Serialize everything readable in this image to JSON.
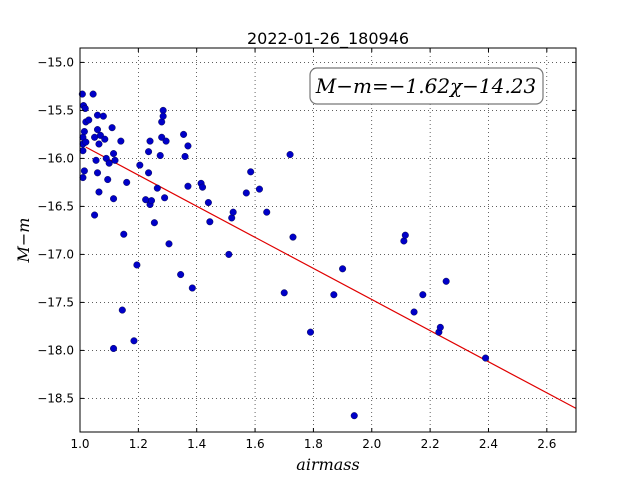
{
  "chart_data": {
    "type": "scatter",
    "title": "2022-01-26_180946",
    "xlabel": "airmass",
    "ylabel": "M−m",
    "annotation": "M−m=−1.62χ−14.23",
    "xlim": [
      1.0,
      2.7
    ],
    "ylim": [
      -18.85,
      -14.85
    ],
    "x_ticks": [
      1.0,
      1.2,
      1.4,
      1.6,
      1.8,
      2.0,
      2.2,
      2.4,
      2.6
    ],
    "x_tick_labels": [
      "1.0",
      "1.2",
      "1.4",
      "1.6",
      "1.8",
      "2.0",
      "2.2",
      "2.4",
      "2.6"
    ],
    "y_ticks": [
      -15.0,
      -15.5,
      -16.0,
      -16.5,
      -17.0,
      -17.5,
      -18.0,
      -18.5
    ],
    "y_tick_labels": [
      "−15.0",
      "−15.5",
      "−16.0",
      "−16.5",
      "−17.0",
      "−17.5",
      "−18.0",
      "−18.5"
    ],
    "grid": true,
    "points_color": "#0000c8",
    "fit_color": "#e00000",
    "fit": {
      "slope": -1.62,
      "intercept": -14.23,
      "x_range": [
        1.02,
        2.7
      ]
    },
    "points": [
      [
        1.008,
        -15.33
      ],
      [
        1.012,
        -15.45
      ],
      [
        1.018,
        -15.48
      ],
      [
        1.01,
        -15.78
      ],
      [
        1.01,
        -15.85
      ],
      [
        1.01,
        -15.92
      ],
      [
        1.015,
        -15.72
      ],
      [
        1.02,
        -15.83
      ],
      [
        1.02,
        -15.62
      ],
      [
        1.03,
        -15.6
      ],
      [
        1.045,
        -15.33
      ],
      [
        1.015,
        -16.13
      ],
      [
        1.01,
        -16.2
      ],
      [
        1.05,
        -15.78
      ],
      [
        1.06,
        -15.55
      ],
      [
        1.06,
        -15.7
      ],
      [
        1.065,
        -15.85
      ],
      [
        1.07,
        -15.76
      ],
      [
        1.055,
        -16.02
      ],
      [
        1.08,
        -15.56
      ],
      [
        1.085,
        -15.8
      ],
      [
        1.06,
        -16.15
      ],
      [
        1.065,
        -16.35
      ],
      [
        1.09,
        -16.0
      ],
      [
        1.095,
        -16.22
      ],
      [
        1.05,
        -16.59
      ],
      [
        1.1,
        -16.05
      ],
      [
        1.11,
        -15.68
      ],
      [
        1.115,
        -15.95
      ],
      [
        1.12,
        -16.02
      ],
      [
        1.115,
        -16.42
      ],
      [
        1.14,
        -15.82
      ],
      [
        1.16,
        -16.25
      ],
      [
        1.15,
        -16.79
      ],
      [
        1.195,
        -17.11
      ],
      [
        1.145,
        -17.58
      ],
      [
        1.185,
        -17.9
      ],
      [
        1.115,
        -17.98
      ],
      [
        1.205,
        -16.07
      ],
      [
        1.225,
        -16.43
      ],
      [
        1.235,
        -15.93
      ],
      [
        1.235,
        -16.15
      ],
      [
        1.24,
        -16.48
      ],
      [
        1.24,
        -15.82
      ],
      [
        1.255,
        -16.67
      ],
      [
        1.265,
        -16.31
      ],
      [
        1.245,
        -16.44
      ],
      [
        1.275,
        -15.97
      ],
      [
        1.28,
        -15.78
      ],
      [
        1.28,
        -15.62
      ],
      [
        1.285,
        -15.5
      ],
      [
        1.285,
        -15.56
      ],
      [
        1.295,
        -15.82
      ],
      [
        1.29,
        -16.41
      ],
      [
        1.305,
        -16.89
      ],
      [
        1.345,
        -17.21
      ],
      [
        1.355,
        -15.75
      ],
      [
        1.36,
        -15.98
      ],
      [
        1.37,
        -15.87
      ],
      [
        1.37,
        -16.29
      ],
      [
        1.385,
        -17.35
      ],
      [
        1.415,
        -16.26
      ],
      [
        1.42,
        -16.3
      ],
      [
        1.44,
        -16.46
      ],
      [
        1.445,
        -16.66
      ],
      [
        1.51,
        -17.0
      ],
      [
        1.52,
        -16.62
      ],
      [
        1.525,
        -16.56
      ],
      [
        1.57,
        -16.36
      ],
      [
        1.585,
        -16.14
      ],
      [
        1.615,
        -16.32
      ],
      [
        1.64,
        -16.56
      ],
      [
        1.7,
        -17.4
      ],
      [
        1.72,
        -15.96
      ],
      [
        1.73,
        -16.82
      ],
      [
        1.79,
        -17.81
      ],
      [
        1.87,
        -17.42
      ],
      [
        1.9,
        -17.15
      ],
      [
        1.94,
        -18.68
      ],
      [
        2.11,
        -16.86
      ],
      [
        2.115,
        -16.8
      ],
      [
        2.145,
        -17.6
      ],
      [
        2.175,
        -17.42
      ],
      [
        2.23,
        -17.81
      ],
      [
        2.235,
        -17.76
      ],
      [
        2.255,
        -17.28
      ],
      [
        2.39,
        -18.08
      ]
    ]
  }
}
